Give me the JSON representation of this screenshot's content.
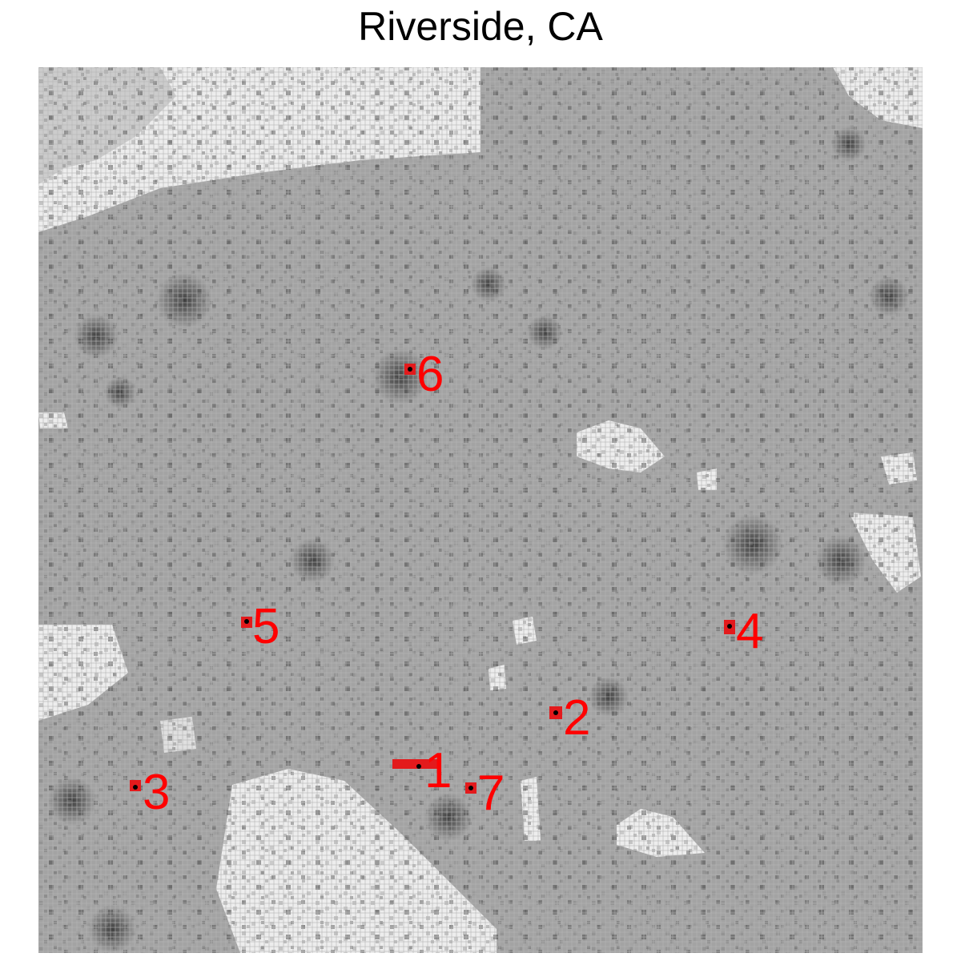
{
  "title": "Riverside, CA",
  "colors": {
    "background": "#a3a3a3",
    "low_density": "#ededed",
    "medium_density": "#bdbdbd",
    "high_density": "#4a4a4a",
    "marker": "#e31a1c",
    "label": "#ff0000"
  },
  "markers": [
    {
      "id": "1",
      "label": "1"
    },
    {
      "id": "2",
      "label": "2"
    },
    {
      "id": "3",
      "label": "3"
    },
    {
      "id": "4",
      "label": "4"
    },
    {
      "id": "5",
      "label": "5"
    },
    {
      "id": "6",
      "label": "6"
    },
    {
      "id": "7",
      "label": "7"
    }
  ]
}
